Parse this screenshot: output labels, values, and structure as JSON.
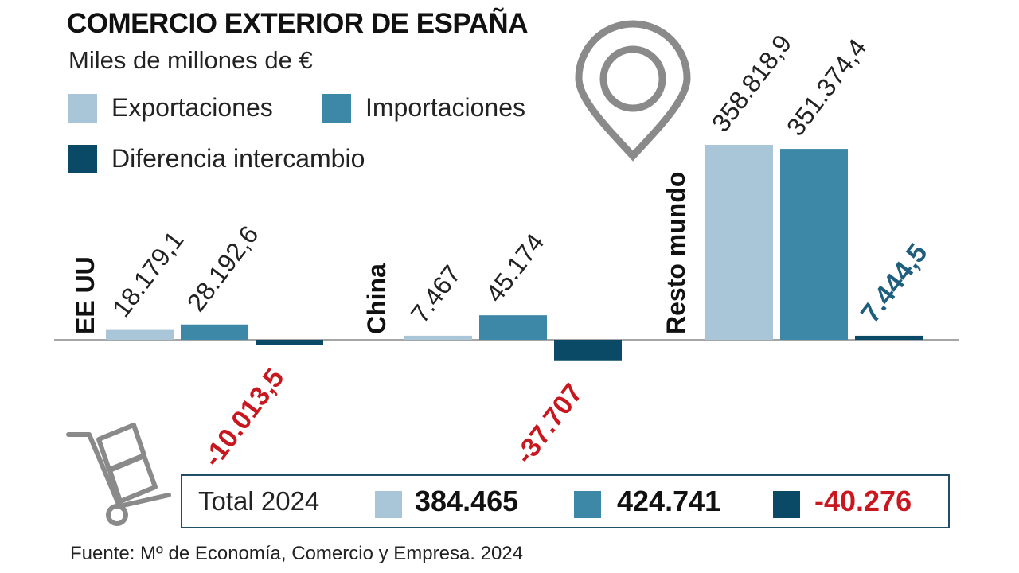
{
  "header": {
    "title": "COMERCIO EXTERIOR DE ESPAÑA",
    "subtitle": "Miles de millones de €"
  },
  "legend": [
    {
      "label": "Exportaciones",
      "color": "#a9c6d8"
    },
    {
      "label": "Importaciones",
      "color": "#3d88a7"
    },
    {
      "label": "Diferencia intercambio",
      "color": "#0b4a66"
    }
  ],
  "colors": {
    "export": "#a9c6d8",
    "import": "#3d88a7",
    "balance": "#0b4a66",
    "negative_label": "#c8171e",
    "positive_label": "#1f5e7e",
    "icon": "#8a8a8a"
  },
  "icons": [
    "location-pin-icon",
    "hand-truck-icon"
  ],
  "chart_data": {
    "type": "bar",
    "categories": [
      "EE UU",
      "China",
      "Resto mundo"
    ],
    "series": [
      {
        "name": "Exportaciones",
        "values": [
          18179.1,
          7467,
          358818.9
        ],
        "labels": [
          "18.179,1",
          "7.467",
          "358.818,9"
        ]
      },
      {
        "name": "Importaciones",
        "values": [
          28192.6,
          45174,
          351374.4
        ],
        "labels": [
          "28.192,6",
          "45.174",
          "351.374,4"
        ]
      },
      {
        "name": "Diferencia intercambio",
        "values": [
          -10013.5,
          -37707,
          7444.5
        ],
        "labels": [
          "-10.013,5",
          "-37.707",
          "7.444,5"
        ]
      }
    ]
  },
  "totals": {
    "label": "Total 2024",
    "export": "384.465",
    "import": "424.741",
    "balance": "-40.276"
  },
  "footer": {
    "source": "Fuente: Mº de Economía, Comercio y Empresa. 2024"
  }
}
